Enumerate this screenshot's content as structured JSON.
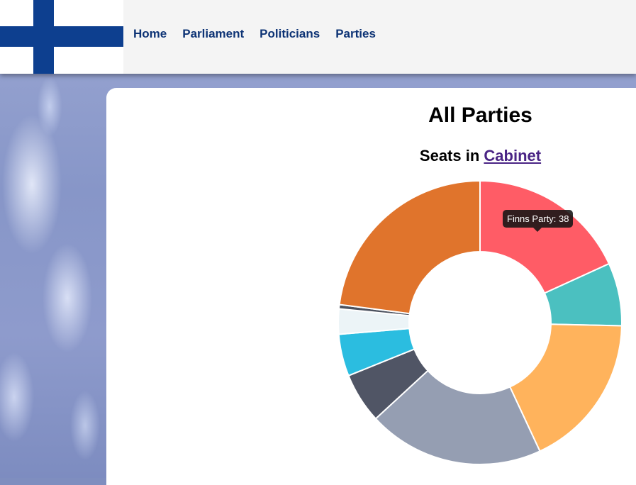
{
  "nav": {
    "items": [
      "Home",
      "Parliament",
      "Politicians",
      "Parties"
    ]
  },
  "page": {
    "title": "All Parties",
    "subtitle_prefix": "Seats in",
    "subtitle_link": "Cabinet"
  },
  "tooltip": {
    "text": "Finns Party: 38"
  },
  "chart_data": {
    "type": "pie",
    "donut": true,
    "title": "",
    "slices": [
      {
        "value": 38,
        "color": "#ff5c66"
      },
      {
        "value": 15,
        "color": "#4bc0c0"
      },
      {
        "value": 37,
        "color": "#ffb35c"
      },
      {
        "value": 42,
        "color": "#959eb2"
      },
      {
        "value": 12,
        "color": "#505565"
      },
      {
        "value": 10,
        "color": "#2bbde0"
      },
      {
        "value": 6,
        "color": "#ecf4f7"
      },
      {
        "value": 1,
        "color": "#4d5360"
      },
      {
        "value": 48,
        "color": "#e0742c"
      }
    ],
    "legend": "none"
  },
  "colors": {
    "nav_text": "#0d3375",
    "flag_blue": "#0d3f8f",
    "link_visited": "#4a2485"
  }
}
